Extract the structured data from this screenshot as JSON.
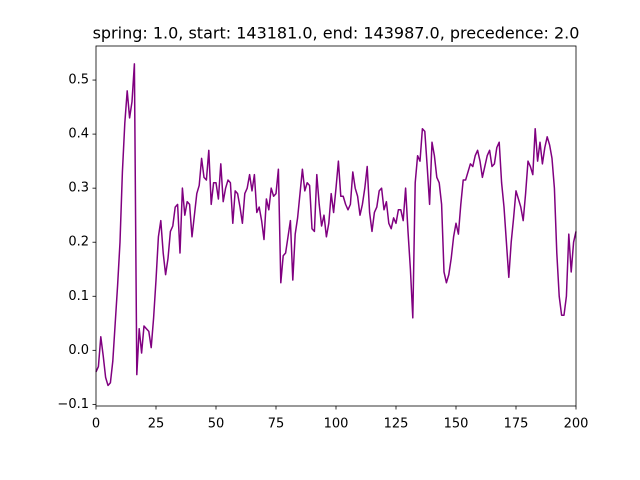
{
  "chart_data": {
    "type": "line",
    "title": "spring: 1.0, start: 143181.0, end: 143987.0, precedence: 2.0",
    "xlim": [
      0,
      200
    ],
    "xticks": [
      0,
      25,
      50,
      75,
      100,
      125,
      150,
      175,
      200
    ],
    "ylim": [
      -0.103,
      0.563
    ],
    "yticks": [
      {
        "value": -0.1,
        "label": "−0.1"
      },
      {
        "value": 0,
        "label": "0.0"
      },
      0.1,
      0.2,
      0.3,
      0.4,
      0.5
    ],
    "series": [
      {
        "color": "#800080",
        "x": [
          0,
          1,
          2,
          3,
          4,
          5,
          6,
          7,
          8,
          9,
          10,
          11,
          12,
          13,
          14,
          15,
          16,
          17,
          18,
          19,
          20,
          21,
          22,
          23,
          24,
          25,
          26,
          27,
          28,
          29,
          30,
          31,
          32,
          33,
          34,
          35,
          36,
          37,
          38,
          39,
          40,
          41,
          42,
          43,
          44,
          45,
          46,
          47,
          48,
          49,
          50,
          51,
          52,
          53,
          54,
          55,
          56,
          57,
          58,
          59,
          60,
          61,
          62,
          63,
          64,
          65,
          66,
          67,
          68,
          69,
          70,
          71,
          72,
          73,
          74,
          75,
          76,
          77,
          78,
          79,
          80,
          81,
          82,
          83,
          84,
          85,
          86,
          87,
          88,
          89,
          90,
          91,
          92,
          93,
          94,
          95,
          96,
          97,
          98,
          99,
          100,
          101,
          102,
          103,
          104,
          105,
          106,
          107,
          108,
          109,
          110,
          111,
          112,
          113,
          114,
          115,
          116,
          117,
          118,
          119,
          120,
          121,
          122,
          123,
          124,
          125,
          126,
          127,
          128,
          129,
          130,
          131,
          132,
          133,
          134,
          135,
          136,
          137,
          138,
          139,
          140,
          141,
          142,
          143,
          144,
          145,
          146,
          147,
          148,
          149,
          150,
          151,
          152,
          153,
          154,
          155,
          156,
          157,
          158,
          159,
          160,
          161,
          162,
          163,
          164,
          165,
          166,
          167,
          168,
          169,
          170,
          171,
          172,
          173,
          174,
          175,
          176,
          177,
          178,
          179,
          180,
          181,
          182,
          183,
          184,
          185,
          186,
          187,
          188,
          189,
          190,
          191,
          192,
          193,
          194,
          195,
          196,
          197,
          198,
          199,
          200
        ],
        "values": [
          -0.04,
          -0.03,
          0.025,
          -0.01,
          -0.05,
          -0.065,
          -0.06,
          -0.02,
          0.05,
          0.12,
          0.2,
          0.33,
          0.42,
          0.48,
          0.43,
          0.46,
          0.53,
          -0.045,
          0.04,
          -0.005,
          0.045,
          0.04,
          0.035,
          0.005,
          0.06,
          0.13,
          0.21,
          0.24,
          0.18,
          0.14,
          0.17,
          0.22,
          0.23,
          0.265,
          0.27,
          0.18,
          0.3,
          0.25,
          0.275,
          0.27,
          0.21,
          0.25,
          0.29,
          0.305,
          0.355,
          0.32,
          0.315,
          0.37,
          0.27,
          0.31,
          0.31,
          0.28,
          0.345,
          0.275,
          0.3,
          0.315,
          0.31,
          0.235,
          0.295,
          0.29,
          0.265,
          0.235,
          0.29,
          0.3,
          0.325,
          0.295,
          0.325,
          0.255,
          0.265,
          0.24,
          0.205,
          0.28,
          0.26,
          0.3,
          0.285,
          0.29,
          0.335,
          0.125,
          0.175,
          0.18,
          0.21,
          0.24,
          0.13,
          0.215,
          0.245,
          0.29,
          0.335,
          0.295,
          0.31,
          0.305,
          0.225,
          0.22,
          0.325,
          0.27,
          0.23,
          0.25,
          0.21,
          0.235,
          0.29,
          0.255,
          0.3,
          0.35,
          0.285,
          0.285,
          0.27,
          0.26,
          0.27,
          0.33,
          0.3,
          0.285,
          0.25,
          0.27,
          0.3,
          0.34,
          0.255,
          0.22,
          0.255,
          0.265,
          0.295,
          0.3,
          0.26,
          0.275,
          0.235,
          0.225,
          0.245,
          0.235,
          0.26,
          0.26,
          0.24,
          0.3,
          0.22,
          0.15,
          0.06,
          0.31,
          0.36,
          0.35,
          0.41,
          0.405,
          0.34,
          0.27,
          0.385,
          0.36,
          0.32,
          0.31,
          0.27,
          0.145,
          0.125,
          0.14,
          0.17,
          0.21,
          0.235,
          0.215,
          0.27,
          0.315,
          0.315,
          0.33,
          0.345,
          0.34,
          0.36,
          0.37,
          0.35,
          0.32,
          0.34,
          0.36,
          0.37,
          0.34,
          0.345,
          0.375,
          0.385,
          0.31,
          0.265,
          0.2,
          0.135,
          0.2,
          0.245,
          0.295,
          0.28,
          0.265,
          0.24,
          0.29,
          0.35,
          0.34,
          0.325,
          0.41,
          0.35,
          0.385,
          0.345,
          0.375,
          0.395,
          0.38,
          0.355,
          0.3,
          0.18,
          0.1,
          0.065,
          0.065,
          0.1,
          0.215,
          0.145,
          0.2,
          0.22
        ]
      }
    ]
  }
}
